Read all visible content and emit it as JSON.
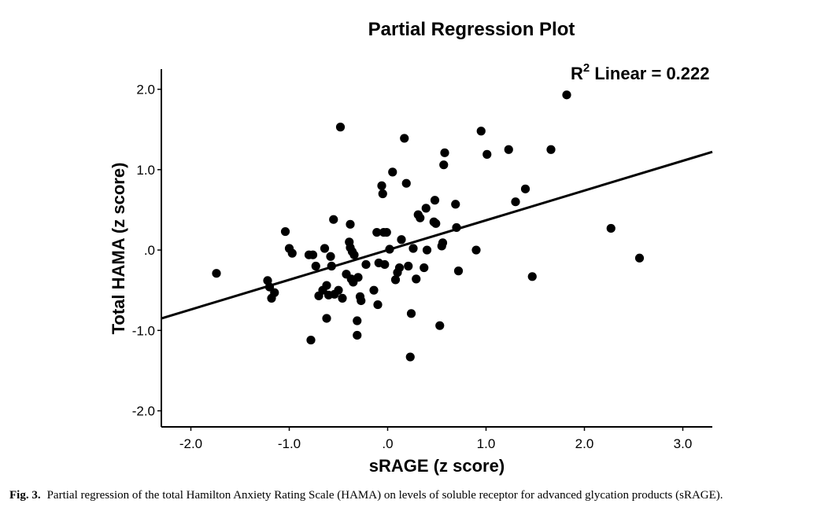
{
  "chart_data": {
    "type": "scatter",
    "title": "Partial Regression Plot",
    "xlabel": "sRAGE (z score)",
    "ylabel": "Total HAMA (z score)",
    "xlim": [
      -2.3,
      3.3
    ],
    "ylim": [
      -2.2,
      2.25
    ],
    "x_ticks": [
      -2.0,
      -1.0,
      0.0,
      1.0,
      2.0,
      3.0
    ],
    "x_tick_labels": [
      "-2.0",
      "-1.0",
      ".0",
      "1.0",
      "2.0",
      "3.0"
    ],
    "y_ticks": [
      -2.0,
      -1.0,
      0.0,
      1.0,
      2.0
    ],
    "y_tick_labels": [
      "-2.0",
      "-1.0",
      ".0",
      "1.0",
      "2.0"
    ],
    "grid": false,
    "annotation": {
      "r2_prefix": "R",
      "r2_superscript": "2",
      "r2_text": " Linear = 0.222"
    },
    "fit_line": {
      "slope": 0.37,
      "intercept": 0.0
    },
    "points": [
      {
        "x": -1.74,
        "y": -0.29
      },
      {
        "x": -1.22,
        "y": -0.38
      },
      {
        "x": -1.2,
        "y": -0.46
      },
      {
        "x": -1.18,
        "y": -0.6
      },
      {
        "x": -1.15,
        "y": -0.53
      },
      {
        "x": -1.04,
        "y": 0.23
      },
      {
        "x": -1.0,
        "y": 0.02
      },
      {
        "x": -0.97,
        "y": -0.04
      },
      {
        "x": -0.8,
        "y": -0.06
      },
      {
        "x": -0.78,
        "y": -1.12
      },
      {
        "x": -0.76,
        "y": -0.06
      },
      {
        "x": -0.73,
        "y": -0.2
      },
      {
        "x": -0.7,
        "y": -0.57
      },
      {
        "x": -0.66,
        "y": -0.5
      },
      {
        "x": -0.64,
        "y": 0.02
      },
      {
        "x": -0.62,
        "y": -0.44
      },
      {
        "x": -0.62,
        "y": -0.85
      },
      {
        "x": -0.6,
        "y": -0.56
      },
      {
        "x": -0.58,
        "y": -0.08
      },
      {
        "x": -0.57,
        "y": -0.2
      },
      {
        "x": -0.55,
        "y": 0.38
      },
      {
        "x": -0.54,
        "y": -0.55
      },
      {
        "x": -0.5,
        "y": -0.5
      },
      {
        "x": -0.48,
        "y": 1.53
      },
      {
        "x": -0.46,
        "y": -0.6
      },
      {
        "x": -0.42,
        "y": -0.3
      },
      {
        "x": -0.39,
        "y": 0.1
      },
      {
        "x": -0.38,
        "y": 0.03
      },
      {
        "x": -0.38,
        "y": 0.32
      },
      {
        "x": -0.37,
        "y": -0.36
      },
      {
        "x": -0.36,
        "y": -0.02
      },
      {
        "x": -0.35,
        "y": -0.4
      },
      {
        "x": -0.34,
        "y": -0.06
      },
      {
        "x": -0.31,
        "y": -0.88
      },
      {
        "x": -0.31,
        "y": -1.06
      },
      {
        "x": -0.3,
        "y": -0.34
      },
      {
        "x": -0.28,
        "y": -0.58
      },
      {
        "x": -0.27,
        "y": -0.63
      },
      {
        "x": -0.22,
        "y": -0.18
      },
      {
        "x": -0.14,
        "y": -0.5
      },
      {
        "x": -0.11,
        "y": 0.22
      },
      {
        "x": -0.1,
        "y": -0.68
      },
      {
        "x": -0.09,
        "y": -0.16
      },
      {
        "x": -0.06,
        "y": 0.8
      },
      {
        "x": -0.05,
        "y": 0.7
      },
      {
        "x": -0.04,
        "y": 0.22
      },
      {
        "x": -0.03,
        "y": -0.18
      },
      {
        "x": -0.01,
        "y": 0.22
      },
      {
        "x": 0.02,
        "y": 0.01
      },
      {
        "x": 0.05,
        "y": 0.97
      },
      {
        "x": 0.08,
        "y": -0.37
      },
      {
        "x": 0.1,
        "y": -0.28
      },
      {
        "x": 0.12,
        "y": -0.22
      },
      {
        "x": 0.14,
        "y": 0.13
      },
      {
        "x": 0.17,
        "y": 1.39
      },
      {
        "x": 0.19,
        "y": 0.83
      },
      {
        "x": 0.21,
        "y": -0.2
      },
      {
        "x": 0.23,
        "y": -1.33
      },
      {
        "x": 0.24,
        "y": -0.79
      },
      {
        "x": 0.26,
        "y": 0.02
      },
      {
        "x": 0.29,
        "y": -0.36
      },
      {
        "x": 0.31,
        "y": 0.44
      },
      {
        "x": 0.33,
        "y": 0.4
      },
      {
        "x": 0.37,
        "y": -0.22
      },
      {
        "x": 0.39,
        "y": 0.52
      },
      {
        "x": 0.4,
        "y": 0.0
      },
      {
        "x": 0.47,
        "y": 0.35
      },
      {
        "x": 0.48,
        "y": 0.62
      },
      {
        "x": 0.49,
        "y": 0.33
      },
      {
        "x": 0.53,
        "y": -0.94
      },
      {
        "x": 0.55,
        "y": 0.05
      },
      {
        "x": 0.56,
        "y": 0.09
      },
      {
        "x": 0.57,
        "y": 1.06
      },
      {
        "x": 0.58,
        "y": 1.21
      },
      {
        "x": 0.69,
        "y": 0.57
      },
      {
        "x": 0.7,
        "y": 0.28
      },
      {
        "x": 0.72,
        "y": -0.26
      },
      {
        "x": 0.9,
        "y": 0.0
      },
      {
        "x": 0.95,
        "y": 1.48
      },
      {
        "x": 1.01,
        "y": 1.19
      },
      {
        "x": 1.23,
        "y": 1.25
      },
      {
        "x": 1.3,
        "y": 0.6
      },
      {
        "x": 1.4,
        "y": 0.76
      },
      {
        "x": 1.47,
        "y": -0.33
      },
      {
        "x": 1.66,
        "y": 1.25
      },
      {
        "x": 1.82,
        "y": 1.93
      },
      {
        "x": 2.27,
        "y": 0.27
      },
      {
        "x": 2.56,
        "y": -0.1
      }
    ]
  },
  "caption": {
    "label": "Fig. 3.",
    "text": "Partial regression of the total Hamilton Anxiety Rating Scale (HAMA) on levels of soluble receptor for advanced glycation products (sRAGE)."
  }
}
